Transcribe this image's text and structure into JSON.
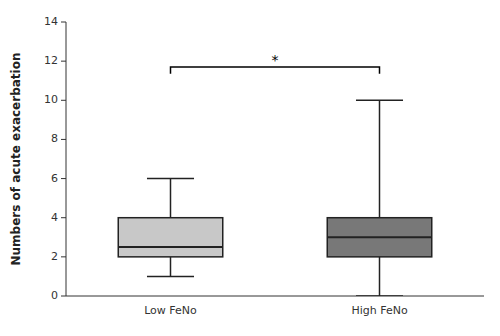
{
  "chart_data": {
    "type": "box",
    "categories": [
      "Low FeNo",
      "High FeNo"
    ],
    "boxes": [
      {
        "whisker_low": 1,
        "q1": 2,
        "median": 2.5,
        "q3": 4,
        "whisker_high": 6
      },
      {
        "whisker_low": 0,
        "q1": 2,
        "median": 3,
        "q3": 4,
        "whisker_high": 10
      }
    ],
    "colors": [
      "#c8c8c8",
      "#787878"
    ],
    "ylabel": "Numbers of acute exacerbation",
    "ylim": [
      0,
      14
    ],
    "yticks": [
      0,
      2,
      4,
      6,
      8,
      10,
      12,
      14
    ],
    "grid": false,
    "annotations": [
      {
        "text": "*",
        "y": 11.7,
        "from": "Low FeNo",
        "to": "High FeNo"
      }
    ]
  }
}
